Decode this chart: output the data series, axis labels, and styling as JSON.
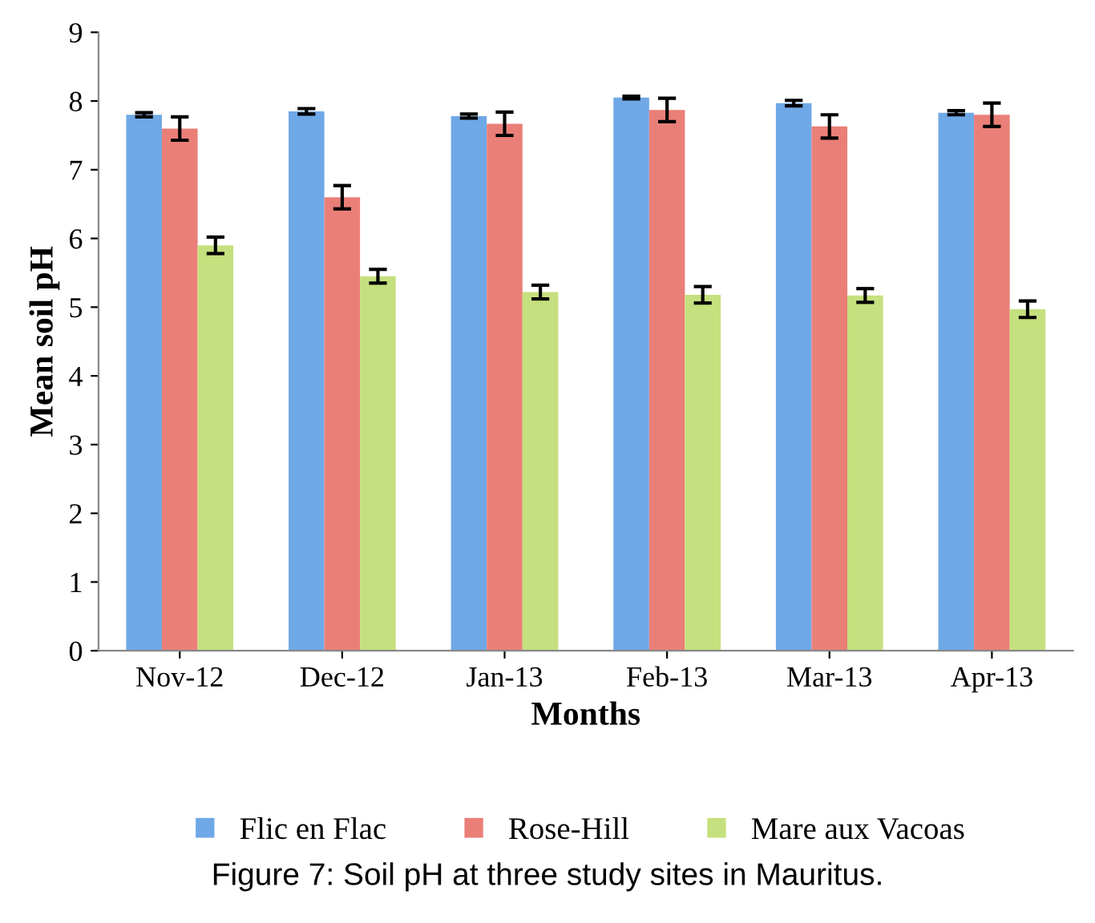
{
  "chart_data": {
    "type": "bar",
    "xlabel": "Months",
    "ylabel": "Mean soil pH",
    "categories": [
      "Nov-12",
      "Dec-12",
      "Jan-13",
      "Feb-13",
      "Mar-13",
      "Apr-13"
    ],
    "series": [
      {
        "name": "Flic en Flac",
        "color": "#6fa8e6",
        "values": [
          7.8,
          7.85,
          7.78,
          8.05,
          7.97,
          7.83
        ],
        "errors": [
          0.03,
          0.04,
          0.03,
          0.02,
          0.04,
          0.03
        ]
      },
      {
        "name": "Rose-Hill",
        "color": "#ea7f78",
        "values": [
          7.6,
          6.6,
          7.67,
          7.87,
          7.63,
          7.8
        ],
        "errors": [
          0.17,
          0.17,
          0.17,
          0.17,
          0.17,
          0.17
        ]
      },
      {
        "name": "Mare aux Vacoas",
        "color": "#c5e07e",
        "values": [
          5.9,
          5.45,
          5.22,
          5.18,
          5.17,
          4.97
        ],
        "errors": [
          0.12,
          0.1,
          0.1,
          0.12,
          0.1,
          0.12
        ]
      }
    ],
    "ylim": [
      0,
      9
    ],
    "yticks": [
      0,
      1,
      2,
      3,
      4,
      5,
      6,
      7,
      8,
      9
    ],
    "grid": false,
    "legend": "bottom",
    "annotations": [
      "Figure 7: Soil pH at three study sites in Mauritus."
    ]
  }
}
